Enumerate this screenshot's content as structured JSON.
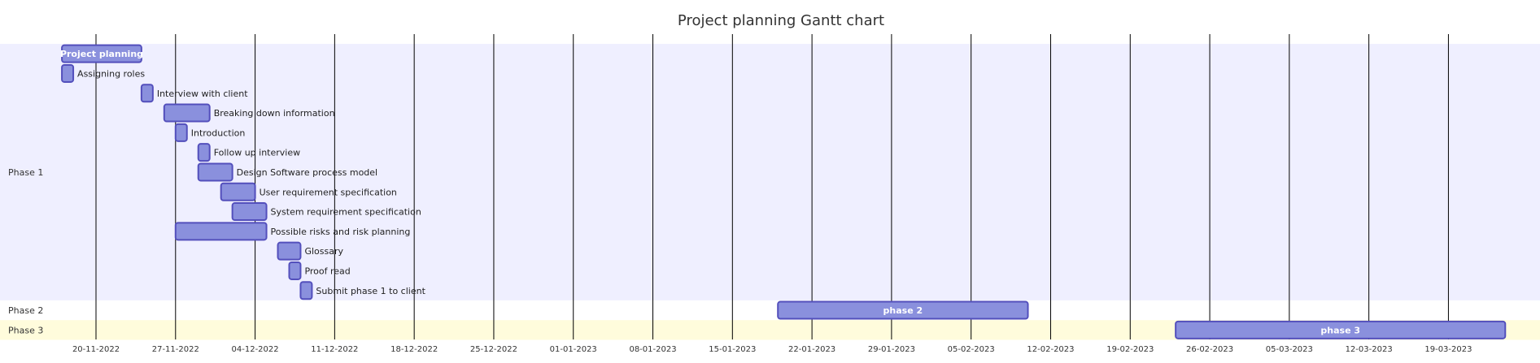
{
  "chart_data": {
    "type": "gantt",
    "title": "Project planning Gantt chart",
    "x_axis": {
      "type": "date",
      "min": "2022-11-16",
      "max": "2023-03-28",
      "ticks": [
        "20-11-2022",
        "27-11-2022",
        "04-12-2022",
        "11-12-2022",
        "18-12-2022",
        "25-12-2022",
        "01-01-2023",
        "08-01-2023",
        "15-01-2023",
        "22-01-2023",
        "29-01-2023",
        "05-02-2023",
        "12-02-2023",
        "19-02-2023",
        "26-02-2023",
        "05-03-2023",
        "12-03-2023",
        "19-03-2023"
      ],
      "grid": true
    },
    "sections": [
      {
        "name": "Phase 1",
        "color": "#efefff"
      },
      {
        "name": "Phase 2",
        "color": "#ffffff"
      },
      {
        "name": "Phase 3",
        "color": "#fffcdc"
      }
    ],
    "tasks": [
      {
        "section": "Phase 1",
        "name": "Project planning",
        "start": "2022-11-17",
        "end": "2022-11-24",
        "label_inside": true
      },
      {
        "section": "Phase 1",
        "name": "Assigning roles",
        "start": "2022-11-17",
        "end": "2022-11-18",
        "label_inside": false
      },
      {
        "section": "Phase 1",
        "name": "Interview with client",
        "start": "2022-11-24",
        "end": "2022-11-25",
        "label_inside": false
      },
      {
        "section": "Phase 1",
        "name": "Breaking down information",
        "start": "2022-11-26",
        "end": "2022-11-30",
        "label_inside": false
      },
      {
        "section": "Phase 1",
        "name": "Introduction",
        "start": "2022-11-27",
        "end": "2022-11-28",
        "label_inside": false
      },
      {
        "section": "Phase 1",
        "name": "Follow up interview",
        "start": "2022-11-29",
        "end": "2022-11-30",
        "label_inside": false
      },
      {
        "section": "Phase 1",
        "name": "Design Software process model",
        "start": "2022-11-29",
        "end": "2022-12-02",
        "label_inside": false
      },
      {
        "section": "Phase 1",
        "name": "User requirement specification",
        "start": "2022-12-01",
        "end": "2022-12-04",
        "label_inside": false
      },
      {
        "section": "Phase 1",
        "name": "System requirement specification",
        "start": "2022-12-02",
        "end": "2022-12-05",
        "label_inside": false
      },
      {
        "section": "Phase 1",
        "name": "Possible risks and risk planning",
        "start": "2022-11-27",
        "end": "2022-12-05",
        "label_inside": false
      },
      {
        "section": "Phase 1",
        "name": "Glossary",
        "start": "2022-12-06",
        "end": "2022-12-08",
        "label_inside": false
      },
      {
        "section": "Phase 1",
        "name": "Proof read",
        "start": "2022-12-07",
        "end": "2022-12-08",
        "label_inside": false
      },
      {
        "section": "Phase 1",
        "name": "Submit phase 1 to client",
        "start": "2022-12-08",
        "end": "2022-12-09",
        "label_inside": false
      },
      {
        "section": "Phase 2",
        "name": "phase 2",
        "start": "2023-01-19",
        "end": "2023-02-10",
        "label_inside": true
      },
      {
        "section": "Phase 3",
        "name": "phase 3",
        "start": "2023-02-23",
        "end": "2023-03-24",
        "label_inside": true
      }
    ],
    "colors": {
      "bar_fill": "#8a90dd",
      "bar_stroke": "#534fbc",
      "grid": "#000000",
      "title": "#333333"
    }
  }
}
